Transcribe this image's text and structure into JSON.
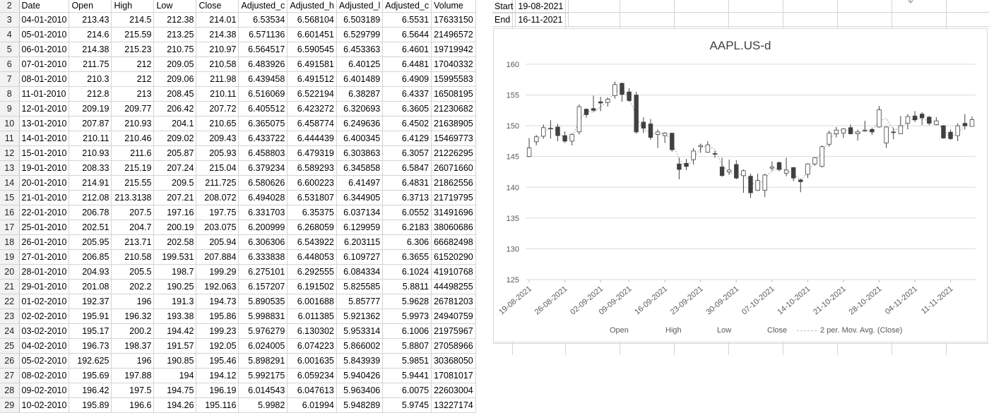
{
  "sheet": {
    "columns": [
      "Date",
      "Open",
      "High",
      "Low",
      "Close",
      "Adjusted_c",
      "Adjusted_h",
      "Adjusted_l",
      "Adjusted_c",
      "Volume"
    ],
    "header_row_number": "2",
    "rows": [
      {
        "n": "3",
        "c": [
          "04-01-2010",
          "213.43",
          "214.5",
          "212.38",
          "214.01",
          "6.53534",
          "6.568104",
          "6.503189",
          "6.5531",
          "17633150"
        ]
      },
      {
        "n": "4",
        "c": [
          "05-01-2010",
          "214.6",
          "215.59",
          "213.25",
          "214.38",
          "6.571136",
          "6.601451",
          "6.529799",
          "6.5644",
          "21496572"
        ]
      },
      {
        "n": "5",
        "c": [
          "06-01-2010",
          "214.38",
          "215.23",
          "210.75",
          "210.97",
          "6.564517",
          "6.590545",
          "6.453363",
          "6.4601",
          "19719942"
        ]
      },
      {
        "n": "6",
        "c": [
          "07-01-2010",
          "211.75",
          "212",
          "209.05",
          "210.58",
          "6.483926",
          "6.491581",
          "6.40125",
          "6.4481",
          "17040332"
        ]
      },
      {
        "n": "7",
        "c": [
          "08-01-2010",
          "210.3",
          "212",
          "209.06",
          "211.98",
          "6.439458",
          "6.491512",
          "6.401489",
          "6.4909",
          "15995583"
        ]
      },
      {
        "n": "8",
        "c": [
          "11-01-2010",
          "212.8",
          "213",
          "208.45",
          "210.11",
          "6.516069",
          "6.522194",
          "6.38287",
          "6.4337",
          "16508195"
        ]
      },
      {
        "n": "9",
        "c": [
          "12-01-2010",
          "209.19",
          "209.77",
          "206.42",
          "207.72",
          "6.405512",
          "6.423272",
          "6.320693",
          "6.3605",
          "21230682"
        ]
      },
      {
        "n": "10",
        "c": [
          "13-01-2010",
          "207.87",
          "210.93",
          "204.1",
          "210.65",
          "6.365075",
          "6.458774",
          "6.249636",
          "6.4502",
          "21638905"
        ]
      },
      {
        "n": "11",
        "c": [
          "14-01-2010",
          "210.11",
          "210.46",
          "209.02",
          "209.43",
          "6.433722",
          "6.444439",
          "6.400345",
          "6.4129",
          "15469773"
        ]
      },
      {
        "n": "12",
        "c": [
          "15-01-2010",
          "210.93",
          "211.6",
          "205.87",
          "205.93",
          "6.458803",
          "6.479319",
          "6.303863",
          "6.3057",
          "21226295"
        ]
      },
      {
        "n": "13",
        "c": [
          "19-01-2010",
          "208.33",
          "215.19",
          "207.24",
          "215.04",
          "6.379234",
          "6.589293",
          "6.345858",
          "6.5847",
          "26071660"
        ]
      },
      {
        "n": "14",
        "c": [
          "20-01-2010",
          "214.91",
          "215.55",
          "209.5",
          "211.725",
          "6.580626",
          "6.600223",
          "6.41497",
          "6.4831",
          "21862556"
        ]
      },
      {
        "n": "15",
        "c": [
          "21-01-2010",
          "212.08",
          "213.3138",
          "207.21",
          "208.072",
          "6.494028",
          "6.531807",
          "6.344905",
          "6.3713",
          "21719795"
        ]
      },
      {
        "n": "16",
        "c": [
          "22-01-2010",
          "206.78",
          "207.5",
          "197.16",
          "197.75",
          "6.331703",
          "6.35375",
          "6.037134",
          "6.0552",
          "31491696"
        ]
      },
      {
        "n": "17",
        "c": [
          "25-01-2010",
          "202.51",
          "204.7",
          "200.19",
          "203.075",
          "6.200999",
          "6.268059",
          "6.129959",
          "6.2183",
          "38060686"
        ]
      },
      {
        "n": "18",
        "c": [
          "26-01-2010",
          "205.95",
          "213.71",
          "202.58",
          "205.94",
          "6.306306",
          "6.543922",
          "6.203115",
          "6.306",
          "66682498"
        ]
      },
      {
        "n": "19",
        "c": [
          "27-01-2010",
          "206.85",
          "210.58",
          "199.531",
          "207.884",
          "6.333838",
          "6.448053",
          "6.109727",
          "6.3655",
          "61520290"
        ]
      },
      {
        "n": "20",
        "c": [
          "28-01-2010",
          "204.93",
          "205.5",
          "198.7",
          "199.29",
          "6.275101",
          "6.292555",
          "6.084334",
          "6.1024",
          "41910768"
        ]
      },
      {
        "n": "21",
        "c": [
          "29-01-2010",
          "201.08",
          "202.2",
          "190.25",
          "192.063",
          "6.157207",
          "6.191502",
          "5.825585",
          "5.8811",
          "44498255"
        ]
      },
      {
        "n": "22",
        "c": [
          "01-02-2010",
          "192.37",
          "196",
          "191.3",
          "194.73",
          "5.890535",
          "6.001688",
          "5.85777",
          "5.9628",
          "26781203"
        ]
      },
      {
        "n": "23",
        "c": [
          "02-02-2010",
          "195.91",
          "196.32",
          "193.38",
          "195.86",
          "5.998831",
          "6.011385",
          "5.921362",
          "5.9973",
          "24940759"
        ]
      },
      {
        "n": "24",
        "c": [
          "03-02-2010",
          "195.17",
          "200.2",
          "194.42",
          "199.23",
          "5.976279",
          "6.130302",
          "5.953314",
          "6.1006",
          "21975967"
        ]
      },
      {
        "n": "25",
        "c": [
          "04-02-2010",
          "196.73",
          "198.37",
          "191.57",
          "192.05",
          "6.024005",
          "6.074223",
          "5.866002",
          "5.8807",
          "27058966"
        ]
      },
      {
        "n": "26",
        "c": [
          "05-02-2010",
          "192.625",
          "196",
          "190.85",
          "195.46",
          "5.898291",
          "6.001635",
          "5.843939",
          "5.9851",
          "30368050"
        ]
      },
      {
        "n": "27",
        "c": [
          "08-02-2010",
          "195.69",
          "197.88",
          "194",
          "194.12",
          "5.992175",
          "6.059234",
          "5.940426",
          "5.9441",
          "17081017"
        ]
      },
      {
        "n": "28",
        "c": [
          "09-02-2010",
          "196.42",
          "197.5",
          "194.75",
          "196.19",
          "6.014543",
          "6.047613",
          "5.963406",
          "6.0075",
          "22603004"
        ]
      },
      {
        "n": "29",
        "c": [
          "10-02-2010",
          "195.89",
          "196.6",
          "194.26",
          "195.116",
          "5.9982",
          "6.01994",
          "5.948289",
          "5.9745",
          "13227174"
        ]
      }
    ]
  },
  "range": {
    "start_label": "Start",
    "start_value": "19-08-2021",
    "end_label": "End",
    "end_value": "16-11-2021"
  },
  "chart_data": {
    "type": "candlestick",
    "title": "AAPL.US-d",
    "xlabel": "",
    "ylabel": "",
    "ylim": [
      125,
      160
    ],
    "yticks": [
      "160",
      "155",
      "150",
      "145",
      "140",
      "135",
      "130",
      "125"
    ],
    "xtick_labels": [
      "19-08-2021",
      "26-08-2021",
      "02-09-2021",
      "09-09-2021",
      "16-09-2021",
      "23-09-2021",
      "30-09-2021",
      "07-10-2021",
      "14-10-2021",
      "21-10-2021",
      "28-10-2021",
      "04-11-2021",
      "11-11-2021"
    ],
    "legend": [
      "Open",
      "High",
      "Low",
      "Close",
      "2 per. Mov. Avg. (Close)"
    ],
    "legend_position": "bottom",
    "grid": true,
    "up_color": "#ffffff",
    "down_color": "#404040",
    "ma_color": "#c9c0a8",
    "candles": [
      {
        "d": "19-08-2021",
        "o": 145.0,
        "h": 148.0,
        "l": 144.9,
        "c": 146.4
      },
      {
        "d": "20-08-2021",
        "o": 147.4,
        "h": 148.5,
        "l": 146.8,
        "c": 148.2
      },
      {
        "d": "23-08-2021",
        "o": 148.3,
        "h": 150.2,
        "l": 147.9,
        "c": 149.7
      },
      {
        "d": "24-08-2021",
        "o": 149.5,
        "h": 150.9,
        "l": 147.9,
        "c": 149.6
      },
      {
        "d": "25-08-2021",
        "o": 149.8,
        "h": 150.3,
        "l": 147.5,
        "c": 148.4
      },
      {
        "d": "26-08-2021",
        "o": 148.4,
        "h": 149.1,
        "l": 147.2,
        "c": 147.5
      },
      {
        "d": "27-08-2021",
        "o": 147.5,
        "h": 148.8,
        "l": 146.8,
        "c": 148.6
      },
      {
        "d": "30-08-2021",
        "o": 149.0,
        "h": 153.5,
        "l": 148.6,
        "c": 153.1
      },
      {
        "d": "31-08-2021",
        "o": 152.7,
        "h": 152.8,
        "l": 151.3,
        "c": 151.8
      },
      {
        "d": "01-09-2021",
        "o": 152.8,
        "h": 154.9,
        "l": 152.3,
        "c": 152.5
      },
      {
        "d": "02-09-2021",
        "o": 153.9,
        "h": 154.7,
        "l": 152.4,
        "c": 153.7
      },
      {
        "d": "03-09-2021",
        "o": 153.8,
        "h": 154.6,
        "l": 153.1,
        "c": 154.3
      },
      {
        "d": "07-09-2021",
        "o": 154.9,
        "h": 157.2,
        "l": 154.4,
        "c": 156.7
      },
      {
        "d": "08-09-2021",
        "o": 156.9,
        "h": 157.0,
        "l": 153.9,
        "c": 155.1
      },
      {
        "d": "09-09-2021",
        "o": 155.5,
        "h": 156.1,
        "l": 153.9,
        "c": 154.1
      },
      {
        "d": "10-09-2021",
        "o": 155.0,
        "h": 155.5,
        "l": 148.7,
        "c": 149.0
      },
      {
        "d": "13-09-2021",
        "o": 150.6,
        "h": 151.4,
        "l": 148.8,
        "c": 149.6
      },
      {
        "d": "14-09-2021",
        "o": 150.3,
        "h": 151.1,
        "l": 147.7,
        "c": 148.1
      },
      {
        "d": "15-09-2021",
        "o": 148.6,
        "h": 149.4,
        "l": 146.4,
        "c": 149.0
      },
      {
        "d": "16-09-2021",
        "o": 148.4,
        "h": 148.9,
        "l": 147.2,
        "c": 148.8
      },
      {
        "d": "17-09-2021",
        "o": 148.8,
        "h": 148.8,
        "l": 145.8,
        "c": 146.1
      },
      {
        "d": "20-09-2021",
        "o": 143.8,
        "h": 144.8,
        "l": 141.3,
        "c": 142.9
      },
      {
        "d": "21-09-2021",
        "o": 143.9,
        "h": 144.6,
        "l": 142.8,
        "c": 143.4
      },
      {
        "d": "22-09-2021",
        "o": 144.5,
        "h": 146.4,
        "l": 143.7,
        "c": 145.9
      },
      {
        "d": "23-09-2021",
        "o": 146.6,
        "h": 147.1,
        "l": 145.6,
        "c": 146.8
      },
      {
        "d": "24-09-2021",
        "o": 145.7,
        "h": 147.5,
        "l": 145.6,
        "c": 146.9
      },
      {
        "d": "27-09-2021",
        "o": 145.5,
        "h": 145.9,
        "l": 144.8,
        "c": 145.4
      },
      {
        "d": "28-09-2021",
        "o": 143.3,
        "h": 144.8,
        "l": 141.7,
        "c": 141.9
      },
      {
        "d": "29-09-2021",
        "o": 142.5,
        "h": 144.5,
        "l": 142.0,
        "c": 142.8
      },
      {
        "d": "30-09-2021",
        "o": 143.7,
        "h": 144.4,
        "l": 141.3,
        "c": 141.5
      },
      {
        "d": "01-10-2021",
        "o": 141.9,
        "h": 142.9,
        "l": 139.1,
        "c": 142.7
      },
      {
        "d": "04-10-2021",
        "o": 141.8,
        "h": 142.2,
        "l": 138.3,
        "c": 139.1
      },
      {
        "d": "05-10-2021",
        "o": 139.5,
        "h": 142.2,
        "l": 139.4,
        "c": 141.1
      },
      {
        "d": "06-10-2021",
        "o": 139.5,
        "h": 142.2,
        "l": 138.4,
        "c": 142.0
      },
      {
        "d": "07-10-2021",
        "o": 143.1,
        "h": 144.2,
        "l": 142.7,
        "c": 143.3
      },
      {
        "d": "08-10-2021",
        "o": 144.0,
        "h": 144.2,
        "l": 142.6,
        "c": 142.9
      },
      {
        "d": "11-10-2021",
        "o": 142.3,
        "h": 144.8,
        "l": 141.8,
        "c": 142.8
      },
      {
        "d": "12-10-2021",
        "o": 143.2,
        "h": 143.3,
        "l": 141.0,
        "c": 141.5
      },
      {
        "d": "13-10-2021",
        "o": 141.2,
        "h": 141.4,
        "l": 139.2,
        "c": 140.9
      },
      {
        "d": "14-10-2021",
        "o": 142.1,
        "h": 143.9,
        "l": 141.5,
        "c": 143.8
      },
      {
        "d": "15-10-2021",
        "o": 143.8,
        "h": 144.9,
        "l": 143.5,
        "c": 144.8
      },
      {
        "d": "18-10-2021",
        "o": 143.4,
        "h": 146.8,
        "l": 143.2,
        "c": 146.6
      },
      {
        "d": "19-10-2021",
        "o": 147.0,
        "h": 149.2,
        "l": 146.6,
        "c": 148.8
      },
      {
        "d": "20-10-2021",
        "o": 148.7,
        "h": 149.8,
        "l": 148.1,
        "c": 149.3
      },
      {
        "d": "21-10-2021",
        "o": 148.8,
        "h": 149.6,
        "l": 148.0,
        "c": 149.5
      },
      {
        "d": "22-10-2021",
        "o": 149.7,
        "h": 150.2,
        "l": 148.6,
        "c": 148.7
      },
      {
        "d": "25-10-2021",
        "o": 148.7,
        "h": 149.4,
        "l": 147.6,
        "c": 149.0
      },
      {
        "d": "26-10-2021",
        "o": 149.3,
        "h": 150.8,
        "l": 149.0,
        "c": 149.3
      },
      {
        "d": "27-10-2021",
        "o": 149.4,
        "h": 149.7,
        "l": 148.5,
        "c": 149.0
      },
      {
        "d": "28-10-2021",
        "o": 149.8,
        "h": 153.2,
        "l": 149.7,
        "c": 152.6
      },
      {
        "d": "29-10-2021",
        "o": 147.2,
        "h": 149.9,
        "l": 146.4,
        "c": 149.8
      },
      {
        "d": "01-11-2021",
        "o": 148.99,
        "h": 149.7,
        "l": 147.8,
        "c": 148.96
      },
      {
        "d": "02-11-2021",
        "o": 148.7,
        "h": 151.6,
        "l": 148.7,
        "c": 150.0
      },
      {
        "d": "03-11-2021",
        "o": 150.4,
        "h": 151.9,
        "l": 149.4,
        "c": 151.5
      },
      {
        "d": "04-11-2021",
        "o": 151.6,
        "h": 152.4,
        "l": 150.6,
        "c": 150.96
      },
      {
        "d": "05-11-2021",
        "o": 151.9,
        "h": 152.2,
        "l": 150.1,
        "c": 151.3
      },
      {
        "d": "08-11-2021",
        "o": 151.4,
        "h": 151.6,
        "l": 150.1,
        "c": 150.4
      },
      {
        "d": "09-11-2021",
        "o": 150.2,
        "h": 151.4,
        "l": 150.1,
        "c": 150.8
      },
      {
        "d": "10-11-2021",
        "o": 150.0,
        "h": 150.1,
        "l": 147.9,
        "c": 148.0
      },
      {
        "d": "11-11-2021",
        "o": 148.96,
        "h": 149.4,
        "l": 147.7,
        "c": 147.9
      },
      {
        "d": "12-11-2021",
        "o": 148.4,
        "h": 150.4,
        "l": 147.5,
        "c": 149.99
      },
      {
        "d": "15-11-2021",
        "o": 150.4,
        "h": 151.9,
        "l": 149.4,
        "c": 150.0
      },
      {
        "d": "16-11-2021",
        "o": 149.9,
        "h": 151.5,
        "l": 149.9,
        "c": 151.0
      }
    ]
  }
}
